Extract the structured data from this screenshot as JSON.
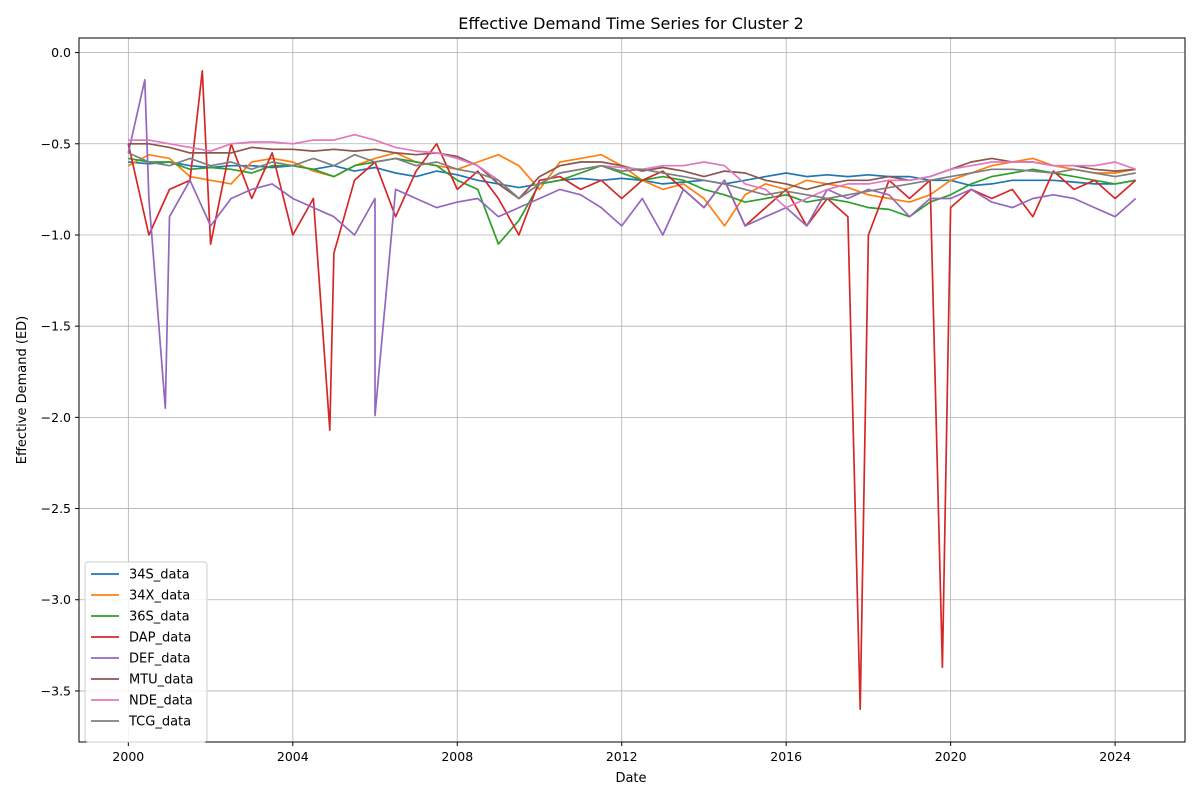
{
  "chart_data": {
    "type": "line",
    "title": "Effective Demand Time Series for Cluster 2",
    "xlabel": "Date",
    "ylabel": "Effective Demand (ED)",
    "xlim": [
      1998.8,
      2025.7
    ],
    "ylim": [
      -3.78,
      0.08
    ],
    "x_ticks": [
      "2000",
      "2004",
      "2008",
      "2012",
      "2016",
      "2020",
      "2024"
    ],
    "y_ticks": [
      "0.0",
      "−0.5",
      "−1.0",
      "−1.5",
      "−2.0",
      "−2.5",
      "−3.0",
      "−3.5"
    ],
    "grid": true,
    "legend_position": "lower-left",
    "x": [
      2000.0,
      2000.5,
      2001.0,
      2001.5,
      2002.0,
      2002.5,
      2003.0,
      2003.5,
      2004.0,
      2004.5,
      2005.0,
      2005.5,
      2006.0,
      2006.5,
      2007.0,
      2007.5,
      2008.0,
      2008.5,
      2009.0,
      2009.5,
      2010.0,
      2010.5,
      2011.0,
      2011.5,
      2012.0,
      2012.5,
      2013.0,
      2013.5,
      2014.0,
      2014.5,
      2015.0,
      2015.5,
      2016.0,
      2016.5,
      2017.0,
      2017.5,
      2018.0,
      2018.5,
      2019.0,
      2019.5,
      2020.0,
      2020.5,
      2021.0,
      2021.5,
      2022.0,
      2022.5,
      2023.0,
      2023.5,
      2024.0,
      2024.5
    ],
    "series": [
      {
        "name": "34S_data",
        "color": "#1f77b4",
        "values": [
          -0.6,
          -0.61,
          -0.6,
          -0.62,
          -0.63,
          -0.62,
          -0.62,
          -0.63,
          -0.62,
          -0.64,
          -0.62,
          -0.65,
          -0.63,
          -0.66,
          -0.68,
          -0.65,
          -0.67,
          -0.7,
          -0.72,
          -0.74,
          -0.72,
          -0.7,
          -0.69,
          -0.7,
          -0.69,
          -0.7,
          -0.72,
          -0.71,
          -0.7,
          -0.72,
          -0.7,
          -0.68,
          -0.66,
          -0.68,
          -0.67,
          -0.68,
          -0.67,
          -0.68,
          -0.68,
          -0.7,
          -0.7,
          -0.73,
          -0.72,
          -0.7,
          -0.7,
          -0.7,
          -0.71,
          -0.72,
          -0.72,
          -0.7
        ]
      },
      {
        "name": "34X_data",
        "color": "#ff7f0e",
        "values": [
          -0.62,
          -0.56,
          -0.58,
          -0.68,
          -0.7,
          -0.72,
          -0.6,
          -0.58,
          -0.6,
          -0.65,
          -0.68,
          -0.62,
          -0.58,
          -0.55,
          -0.6,
          -0.62,
          -0.64,
          -0.6,
          -0.56,
          -0.62,
          -0.75,
          -0.6,
          -0.58,
          -0.56,
          -0.62,
          -0.7,
          -0.75,
          -0.72,
          -0.8,
          -0.95,
          -0.78,
          -0.72,
          -0.75,
          -0.7,
          -0.72,
          -0.74,
          -0.78,
          -0.8,
          -0.82,
          -0.78,
          -0.7,
          -0.66,
          -0.62,
          -0.6,
          -0.58,
          -0.62,
          -0.64,
          -0.66,
          -0.66,
          -0.64
        ]
      },
      {
        "name": "36S_data",
        "color": "#2ca02c",
        "values": [
          -0.58,
          -0.6,
          -0.6,
          -0.64,
          -0.63,
          -0.64,
          -0.66,
          -0.62,
          -0.62,
          -0.64,
          -0.68,
          -0.62,
          -0.6,
          -0.58,
          -0.6,
          -0.62,
          -0.7,
          -0.75,
          -1.05,
          -0.92,
          -0.72,
          -0.7,
          -0.66,
          -0.62,
          -0.66,
          -0.7,
          -0.68,
          -0.7,
          -0.75,
          -0.78,
          -0.82,
          -0.8,
          -0.78,
          -0.82,
          -0.8,
          -0.82,
          -0.85,
          -0.86,
          -0.9,
          -0.82,
          -0.78,
          -0.72,
          -0.68,
          -0.66,
          -0.64,
          -0.66,
          -0.68,
          -0.7,
          -0.72,
          -0.7
        ]
      },
      {
        "name": "DAP_data",
        "color": "#d62728",
        "values": [
          -0.5,
          -1.0,
          -0.75,
          -0.7,
          -1.05,
          -0.5,
          -0.8,
          -0.55,
          -1.0,
          -0.8,
          -1.1,
          -0.7,
          -0.6,
          -0.9,
          -0.65,
          -0.5,
          -0.75,
          -0.65,
          -0.8,
          -1.0,
          -0.7,
          -0.68,
          -0.75,
          -0.7,
          -0.8,
          -0.7,
          -0.65,
          -0.75,
          -0.85,
          -0.7,
          -0.95,
          -0.85,
          -0.75,
          -0.95,
          -0.8,
          -0.9,
          -1.0,
          -0.7,
          -0.8,
          -0.7,
          -0.85,
          -0.75,
          -0.8,
          -0.75,
          -0.9,
          -0.65,
          -0.75,
          -0.7,
          -0.8,
          -0.7
        ]
      },
      {
        "name": "DEF_data",
        "color": "#9467bd",
        "values": [
          -0.55,
          -0.8,
          -0.9,
          -0.7,
          -0.95,
          -0.8,
          -0.75,
          -0.72,
          -0.8,
          -0.85,
          -0.9,
          -1.0,
          -0.8,
          -0.75,
          -0.8,
          -0.85,
          -0.82,
          -0.8,
          -0.9,
          -0.85,
          -0.8,
          -0.75,
          -0.78,
          -0.85,
          -0.95,
          -0.8,
          -1.0,
          -0.75,
          -0.85,
          -0.7,
          -0.95,
          -0.9,
          -0.85,
          -0.95,
          -0.75,
          -0.8,
          -0.75,
          -0.78,
          -0.9,
          -0.8,
          -0.8,
          -0.75,
          -0.82,
          -0.85,
          -0.8,
          -0.78,
          -0.8,
          -0.85,
          -0.9,
          -0.8
        ]
      },
      {
        "name": "MTU_data",
        "color": "#8c564b",
        "values": [
          -0.5,
          -0.5,
          -0.52,
          -0.55,
          -0.55,
          -0.55,
          -0.52,
          -0.53,
          -0.53,
          -0.54,
          -0.53,
          -0.54,
          -0.53,
          -0.55,
          -0.56,
          -0.55,
          -0.57,
          -0.62,
          -0.72,
          -0.8,
          -0.68,
          -0.62,
          -0.6,
          -0.6,
          -0.62,
          -0.65,
          -0.63,
          -0.65,
          -0.68,
          -0.65,
          -0.66,
          -0.7,
          -0.72,
          -0.75,
          -0.72,
          -0.7,
          -0.7,
          -0.68,
          -0.7,
          -0.68,
          -0.64,
          -0.6,
          -0.58,
          -0.6,
          -0.6,
          -0.62,
          -0.62,
          -0.64,
          -0.65,
          -0.64
        ]
      },
      {
        "name": "NDE_data",
        "color": "#e377c2",
        "values": [
          -0.48,
          -0.48,
          -0.5,
          -0.52,
          -0.54,
          -0.5,
          -0.49,
          -0.49,
          -0.5,
          -0.48,
          -0.48,
          -0.45,
          -0.48,
          -0.52,
          -0.54,
          -0.55,
          -0.58,
          -0.62,
          -0.7,
          -0.8,
          -0.72,
          -0.66,
          -0.64,
          -0.62,
          -0.63,
          -0.64,
          -0.62,
          -0.62,
          -0.6,
          -0.62,
          -0.72,
          -0.75,
          -0.85,
          -0.8,
          -0.75,
          -0.72,
          -0.72,
          -0.7,
          -0.7,
          -0.68,
          -0.64,
          -0.62,
          -0.6,
          -0.6,
          -0.6,
          -0.62,
          -0.62,
          -0.62,
          -0.6,
          -0.64
        ]
      },
      {
        "name": "TCG_data",
        "color": "#7f7f7f",
        "values": [
          -0.55,
          -0.6,
          -0.62,
          -0.58,
          -0.62,
          -0.6,
          -0.64,
          -0.6,
          -0.62,
          -0.58,
          -0.62,
          -0.56,
          -0.6,
          -0.58,
          -0.62,
          -0.6,
          -0.64,
          -0.66,
          -0.7,
          -0.8,
          -0.72,
          -0.66,
          -0.64,
          -0.62,
          -0.65,
          -0.64,
          -0.66,
          -0.68,
          -0.7,
          -0.72,
          -0.75,
          -0.78,
          -0.76,
          -0.78,
          -0.8,
          -0.78,
          -0.76,
          -0.74,
          -0.72,
          -0.7,
          -0.68,
          -0.66,
          -0.64,
          -0.64,
          -0.65,
          -0.66,
          -0.64,
          -0.66,
          -0.68,
          -0.66
        ]
      }
    ],
    "annotations": [
      {
        "series": "DAP_data",
        "x": 2017.8,
        "y": -3.6
      },
      {
        "series": "DAP_data",
        "x": 2019.8,
        "y": -3.37
      },
      {
        "series": "DAP_data",
        "x": 2004.9,
        "y": -2.07
      },
      {
        "series": "DEF_data",
        "x": 2006.0,
        "y": -1.99
      },
      {
        "series": "DEF_data",
        "x": 2000.9,
        "y": -1.95
      },
      {
        "series": "DEF_data",
        "x": 2000.4,
        "y": -0.15
      },
      {
        "series": "DAP_data",
        "x": 2001.8,
        "y": -0.1
      }
    ]
  }
}
